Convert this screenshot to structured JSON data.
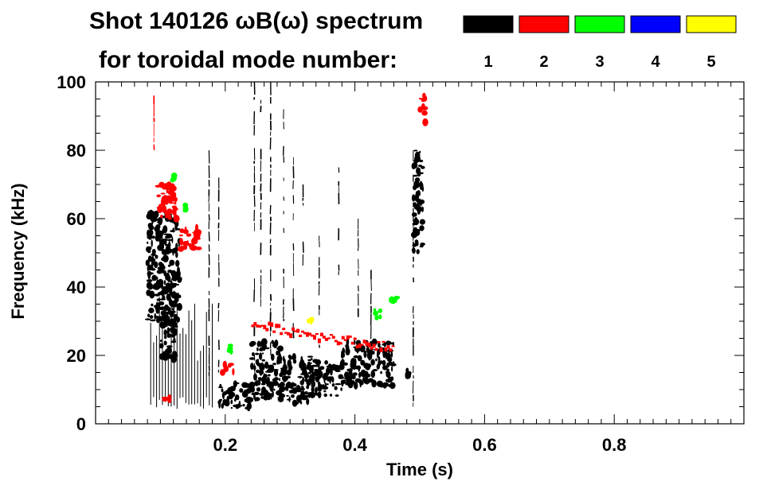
{
  "chart_data": {
    "type": "heatmap",
    "title_line1": "Shot 140126 ωB(ω) spectrum",
    "title_line2": "for toroidal mode number:",
    "xlabel": "Time (s)",
    "ylabel": "Frequency (kHz)",
    "xlim": [
      0.0,
      1.0
    ],
    "ylim": [
      0,
      100
    ],
    "x_ticks": [
      0.2,
      0.4,
      0.6,
      0.8
    ],
    "x_tick_labels": [
      "0.2",
      "0.4",
      "0.6",
      "0.8"
    ],
    "y_ticks": [
      0,
      20,
      40,
      60,
      80,
      100
    ],
    "y_tick_labels": [
      "0",
      "20",
      "40",
      "60",
      "80",
      "100"
    ],
    "legend": [
      {
        "mode": "1",
        "color": "#000000"
      },
      {
        "mode": "2",
        "color": "#ff0000"
      },
      {
        "mode": "3",
        "color": "#00ff00"
      },
      {
        "mode": "4",
        "color": "#0000ff"
      },
      {
        "mode": "5",
        "color": "#ffff00"
      }
    ],
    "features": [
      {
        "mode": "1",
        "kind": "blob",
        "t": [
          0.08,
          0.13
        ],
        "f": [
          30,
          62
        ]
      },
      {
        "mode": "1",
        "kind": "blob",
        "t": [
          0.1,
          0.125
        ],
        "f": [
          18,
          40
        ]
      },
      {
        "mode": "1",
        "kind": "lines",
        "t": [
          0.085,
          0.18
        ],
        "f": [
          4,
          40
        ],
        "count": 22
      },
      {
        "mode": "1",
        "kind": "vline",
        "t": 0.175,
        "f": [
          14,
          80
        ]
      },
      {
        "mode": "1",
        "kind": "vline",
        "t": 0.19,
        "f": [
          15,
          72
        ]
      },
      {
        "mode": "1",
        "kind": "blob",
        "t": [
          0.19,
          0.24
        ],
        "f": [
          4,
          12
        ]
      },
      {
        "mode": "1",
        "kind": "blob",
        "t": [
          0.24,
          0.29
        ],
        "f": [
          7,
          24
        ]
      },
      {
        "mode": "1",
        "kind": "blob",
        "t": [
          0.29,
          0.34
        ],
        "f": [
          6,
          20
        ]
      },
      {
        "mode": "1",
        "kind": "blob",
        "t": [
          0.34,
          0.38
        ],
        "f": [
          8,
          18
        ]
      },
      {
        "mode": "1",
        "kind": "blob",
        "t": [
          0.38,
          0.46
        ],
        "f": [
          11,
          24
        ]
      },
      {
        "mode": "1",
        "kind": "vline",
        "t": 0.245,
        "f": [
          14,
          100
        ]
      },
      {
        "mode": "1",
        "kind": "vline",
        "t": 0.255,
        "f": [
          30,
          100
        ]
      },
      {
        "mode": "1",
        "kind": "vline",
        "t": 0.27,
        "f": [
          20,
          100
        ]
      },
      {
        "mode": "1",
        "kind": "vline",
        "t": 0.29,
        "f": [
          30,
          92
        ]
      },
      {
        "mode": "1",
        "kind": "vline",
        "t": 0.305,
        "f": [
          25,
          78
        ]
      },
      {
        "mode": "1",
        "kind": "vline",
        "t": 0.32,
        "f": [
          40,
          70
        ]
      },
      {
        "mode": "1",
        "kind": "vline",
        "t": 0.345,
        "f": [
          20,
          55
        ]
      },
      {
        "mode": "1",
        "kind": "vline",
        "t": 0.375,
        "f": [
          40,
          75
        ]
      },
      {
        "mode": "1",
        "kind": "vline",
        "t": 0.405,
        "f": [
          30,
          60
        ]
      },
      {
        "mode": "1",
        "kind": "vline",
        "t": 0.425,
        "f": [
          20,
          45
        ]
      },
      {
        "mode": "1",
        "kind": "blob",
        "t": [
          0.49,
          0.505
        ],
        "f": [
          50,
          80
        ]
      },
      {
        "mode": "1",
        "kind": "vline",
        "t": 0.49,
        "f": [
          5,
          80
        ]
      },
      {
        "mode": "1",
        "kind": "blob",
        "t": [
          0.478,
          0.485
        ],
        "f": [
          13,
          16
        ]
      },
      {
        "mode": "2",
        "kind": "blob",
        "t": [
          0.095,
          0.13
        ],
        "f": [
          60,
          70
        ]
      },
      {
        "mode": "2",
        "kind": "blob",
        "t": [
          0.13,
          0.16
        ],
        "f": [
          50,
          58
        ]
      },
      {
        "mode": "2",
        "kind": "vline",
        "t": 0.09,
        "f": [
          80,
          96
        ]
      },
      {
        "mode": "2",
        "kind": "blob",
        "t": [
          0.195,
          0.215
        ],
        "f": [
          15,
          18
        ]
      },
      {
        "mode": "2",
        "kind": "band",
        "t": [
          0.24,
          0.46
        ],
        "f0": 29,
        "f1": 22
      },
      {
        "mode": "2",
        "kind": "blob",
        "t": [
          0.5,
          0.51
        ],
        "f": [
          88,
          96
        ]
      },
      {
        "mode": "2",
        "kind": "blob",
        "t": [
          0.105,
          0.115
        ],
        "f": [
          6,
          8
        ]
      },
      {
        "mode": "3",
        "kind": "blob",
        "t": [
          0.135,
          0.14
        ],
        "f": [
          62,
          64
        ]
      },
      {
        "mode": "3",
        "kind": "blob",
        "t": [
          0.118,
          0.122
        ],
        "f": [
          71,
          73
        ]
      },
      {
        "mode": "3",
        "kind": "blob",
        "t": [
          0.205,
          0.212
        ],
        "f": [
          21,
          23
        ]
      },
      {
        "mode": "3",
        "kind": "blob",
        "t": [
          0.425,
          0.44
        ],
        "f": [
          31,
          34
        ]
      },
      {
        "mode": "3",
        "kind": "blob",
        "t": [
          0.455,
          0.465
        ],
        "f": [
          35,
          37
        ]
      },
      {
        "mode": "5",
        "kind": "blob",
        "t": [
          0.33,
          0.336
        ],
        "f": [
          30,
          31
        ]
      }
    ]
  }
}
